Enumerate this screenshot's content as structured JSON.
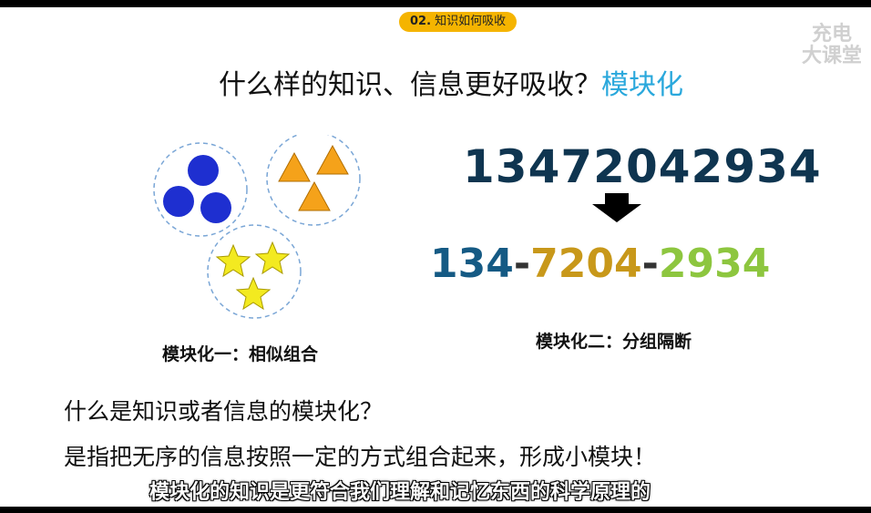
{
  "section_tag": {
    "number": "02.",
    "label": "知识如何吸收"
  },
  "watermark": {
    "line1": "充电",
    "line2": "大课堂"
  },
  "title": {
    "main": "什么样的知识、信息更好吸收？",
    "accent": "模块化"
  },
  "example": {
    "raw_number": "13472042934",
    "groups": [
      "134",
      "7204",
      "2934"
    ],
    "separator": "-",
    "group_colors": [
      "#155a84",
      "#c8981a",
      "#8dc63f"
    ]
  },
  "captions": {
    "similar": "模块化一：相似组合",
    "grouping": "模块化二：分组隔断"
  },
  "question": "什么是知识或者信息的模块化？",
  "answer": "是指把无序的信息按照一定的方式组合起来，形成小模块！",
  "subtitle": "模块化的知识是更符合我们理解和记忆东西的科学原理的",
  "shape_colors": {
    "circles": "#1e2fd0",
    "triangles": "#f5a21a",
    "stars": "#f3ea20"
  }
}
